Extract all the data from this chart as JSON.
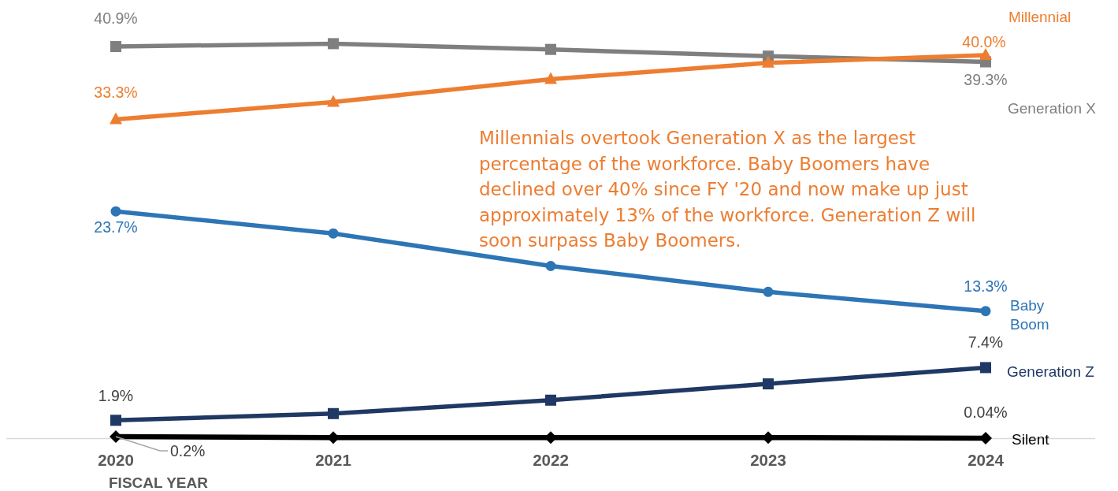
{
  "chart_data": {
    "type": "line",
    "xlabel": "FISCAL YEAR",
    "categories": [
      "2020",
      "2021",
      "2022",
      "2023",
      "2024"
    ],
    "series": [
      {
        "name": "Generation X",
        "color": "#7f7f7f",
        "marker": "square",
        "values": [
          40.9,
          41.2,
          40.6,
          39.9,
          39.3
        ],
        "value_labels": [
          "40.9%",
          null,
          null,
          null,
          "39.3%"
        ]
      },
      {
        "name": "Millennial",
        "color": "#ed7d31",
        "marker": "triangle",
        "values": [
          33.3,
          35.1,
          37.5,
          39.2,
          40.0
        ],
        "value_labels": [
          "33.3%",
          null,
          null,
          null,
          "40.0%"
        ]
      },
      {
        "name": "Baby\nBoom",
        "color": "#2e75b6",
        "marker": "circle",
        "values": [
          23.7,
          21.4,
          18.0,
          15.3,
          13.3
        ],
        "value_labels": [
          "23.7%",
          null,
          null,
          null,
          "13.3%"
        ]
      },
      {
        "name": "Generation Z",
        "color": "#1f3864",
        "marker": "square",
        "values": [
          1.9,
          2.6,
          4.0,
          5.7,
          7.4
        ],
        "value_labels": [
          "1.9%",
          null,
          null,
          null,
          "7.4%"
        ]
      },
      {
        "name": "Silent",
        "color": "#000000",
        "marker": "diamond",
        "values": [
          0.2,
          0.1,
          0.1,
          0.1,
          0.04
        ],
        "value_labels": [
          "0.2%",
          null,
          null,
          null,
          "0.04%"
        ]
      }
    ],
    "annotations": [
      "Millennials overtook Generation X as the largest percentage of the workforce. Baby Boomers have declined over 40% since FY '20 and now make up just approximately 13% of the workforce. Generation Z will soon surpass Baby Boomers."
    ]
  }
}
